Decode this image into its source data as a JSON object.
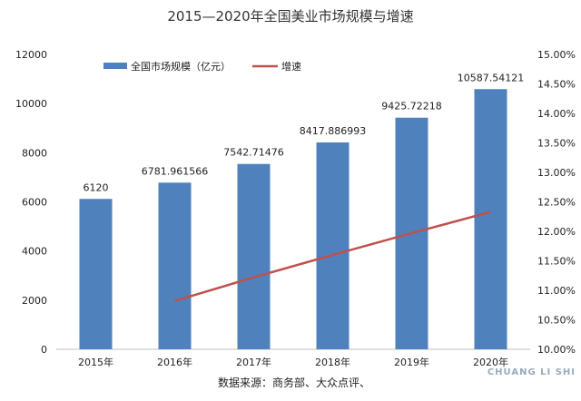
{
  "chart_data": {
    "type": "bar",
    "title": "2015—2020年全国美业市场规模与增速",
    "categories": [
      "2015年",
      "2016年",
      "2017年",
      "2018年",
      "2019年",
      "2020年"
    ],
    "series": [
      {
        "name": "全国市场规模（亿元）",
        "type": "bar",
        "axis": "left",
        "color": "#4f81bd",
        "values": [
          6120,
          6781.961566,
          7542.71476,
          8417.886993,
          9425.72218,
          10587.54121
        ],
        "labels": [
          "6120",
          "6781.961566",
          "7542.71476",
          "8417.886993",
          "9425.72218",
          "10587.54121"
        ]
      },
      {
        "name": "增速",
        "type": "line",
        "axis": "right",
        "color": "#c0504d",
        "values": [
          null,
          10.82,
          11.22,
          11.6,
          11.97,
          12.33
        ]
      }
    ],
    "y_left": {
      "ylim": [
        0,
        12000
      ],
      "ticks": [
        "0",
        "2000",
        "4000",
        "6000",
        "8000",
        "10000",
        "12000"
      ]
    },
    "y_right": {
      "ylim": [
        10.0,
        15.0
      ],
      "ticks": [
        "10.00%",
        "10.50%",
        "11.00%",
        "11.50%",
        "12.00%",
        "12.50%",
        "13.00%",
        "13.50%",
        "14.00%",
        "14.50%",
        "15.00%"
      ]
    },
    "legend_position": "top-left",
    "grid": false
  },
  "source_note": "数据来源：商务部、大众点评、",
  "watermark": "CHUANG LI SHI"
}
